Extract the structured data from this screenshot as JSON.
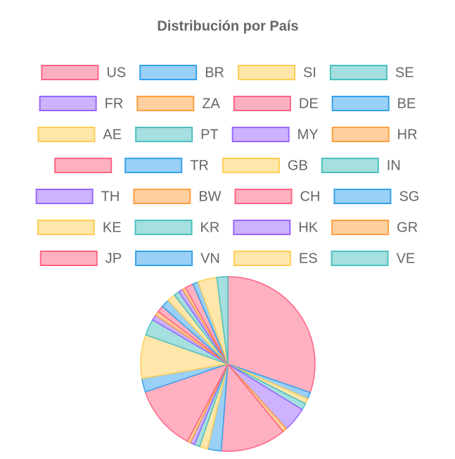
{
  "chart_data": {
    "type": "pie",
    "title": "Distribución por País",
    "categories": [
      "US",
      "BR",
      "SI",
      "SE",
      "FR",
      "ZA",
      "DE",
      "BE",
      "AE",
      "PT",
      "MY",
      "HR",
      null,
      "TR",
      "GB",
      "IN",
      "TH",
      "BW",
      "CH",
      "SG",
      "KE",
      "KR",
      "HK",
      "GR",
      "JP",
      "VN",
      "ES",
      "VE"
    ],
    "values": [
      30,
      1.2,
      1,
      1.2,
      4.5,
      0.8,
      12,
      2.5,
      1.5,
      1,
      0.8,
      0.6,
      12,
      2.5,
      8,
      3,
      1,
      0.8,
      1.2,
      1.5,
      1.5,
      1,
      0.8,
      0.6,
      1.5,
      1,
      3.5,
      2
    ],
    "colors": [
      "#ff6384",
      "#36a2eb",
      "#ffce56",
      "#4bc0c0",
      "#9966ff",
      "#ff9f40"
    ],
    "legend": "top"
  }
}
